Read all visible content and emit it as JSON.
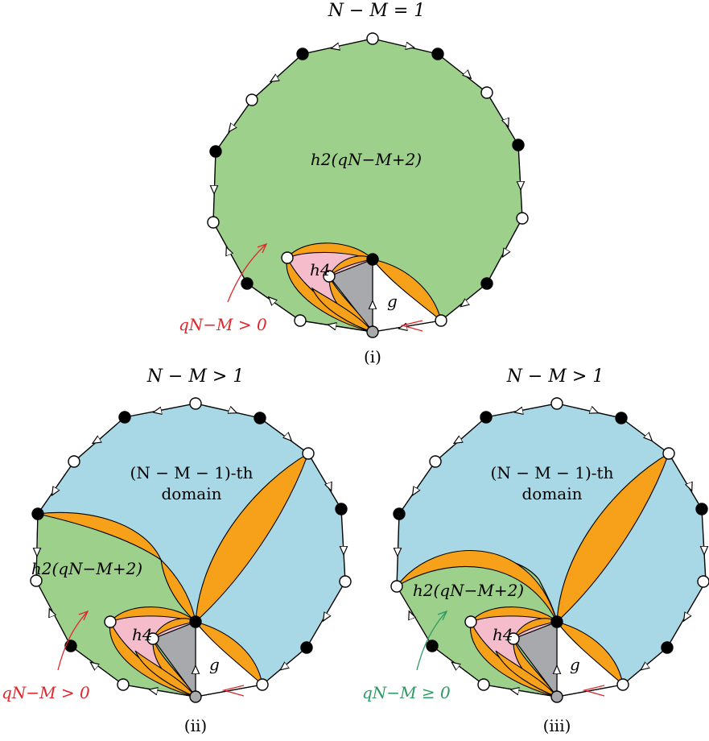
{
  "colors": {
    "outer_domain_green": "#9dd08a",
    "upper_domain_blue": "#a8d8e6",
    "petal_orange": "#f7a11a",
    "h4_pink": "#f5bccb",
    "g_gray": "#a7a9ac",
    "annotation_red": "#e0262b",
    "annotation_green": "#2c9a63"
  },
  "panel_i": {
    "title": "N − M = 1",
    "caption": "(i)",
    "domain_label": "h2(qN−M+2)",
    "h4_label": "h4",
    "g_label": "g",
    "annotation": "qN−M > 0"
  },
  "panel_ii": {
    "title": "N − M > 1",
    "caption": "(ii)",
    "upper_label_line1": "(N − M − 1)-th",
    "upper_label_line2": "domain",
    "domain_label": "h2(qN−M+2)",
    "h4_label": "h4",
    "g_label": "g",
    "annotation": "qN−M > 0"
  },
  "panel_iii": {
    "title": "N − M > 1",
    "caption": "(iii)",
    "upper_label_line1": "(N − M − 1)-th",
    "upper_label_line2": "domain",
    "domain_label": "h2(qN−M+2)",
    "h4_label": "h4",
    "g_label": "g",
    "annotation": "qN−M ≥ 0"
  }
}
